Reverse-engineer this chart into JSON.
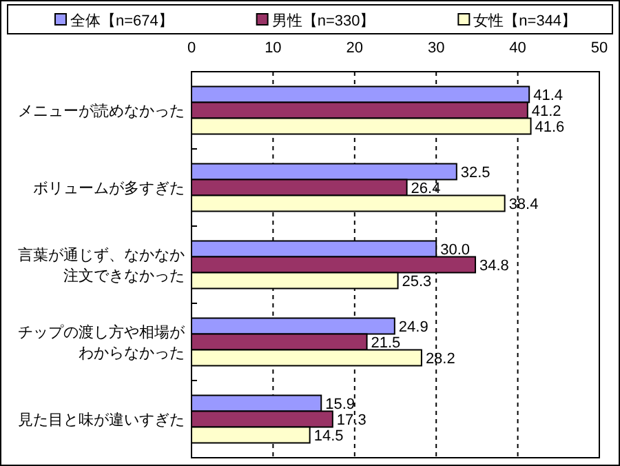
{
  "chart_data": {
    "type": "bar",
    "orientation": "horizontal",
    "categories": [
      "メニューが読めなかった",
      "ボリュームが多すぎた",
      "言葉が通じず、なかなか注文できなかった",
      "チップの渡し方や相場がわからなかった",
      "見た目と味が違いすぎた"
    ],
    "series": [
      {
        "name": "全体【n=674】",
        "color": "#9999ff",
        "values": [
          41.4,
          32.5,
          30.0,
          24.9,
          15.9
        ],
        "value_labels": [
          "41.4",
          "32.5",
          "30.0",
          "24.9",
          "15.9"
        ]
      },
      {
        "name": "男性【n=330】",
        "color": "#993366",
        "values": [
          41.2,
          26.4,
          34.8,
          21.5,
          17.3
        ],
        "value_labels": [
          "41.2",
          "26.4",
          "34.8",
          "21.5",
          "17.3"
        ]
      },
      {
        "name": "女性【n=344】",
        "color": "#ffffcc",
        "values": [
          41.6,
          38.4,
          25.3,
          28.2,
          14.5
        ],
        "value_labels": [
          "41.6",
          "38.4",
          "25.3",
          "28.2",
          "14.5"
        ]
      }
    ],
    "xlim": [
      0,
      50
    ],
    "xticks": [
      0,
      10,
      20,
      30,
      40,
      50
    ],
    "grid": "x",
    "legend": "top"
  }
}
